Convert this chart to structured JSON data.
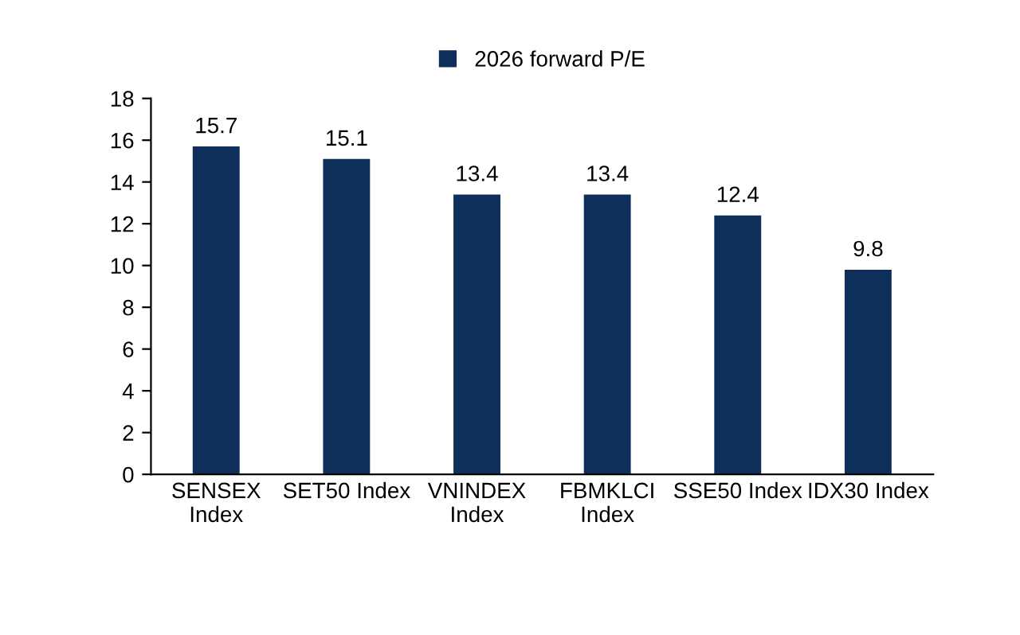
{
  "chart_data": {
    "type": "bar",
    "categories": [
      "SENSEX Index",
      "SET50 Index",
      "VNINDEX Index",
      "FBMKLCI Index",
      "SSE50 Index",
      "IDX30 Index"
    ],
    "series": [
      {
        "name": "2026 forward P/E",
        "color": "#0e2f5a",
        "values": [
          15.7,
          15.1,
          13.4,
          13.4,
          12.4,
          9.8
        ]
      }
    ],
    "ylim": [
      0,
      18
    ],
    "yticks": [
      0,
      2,
      4,
      6,
      8,
      10,
      12,
      14,
      16,
      18
    ],
    "data_labels": true,
    "grid": false,
    "legend": "top"
  }
}
